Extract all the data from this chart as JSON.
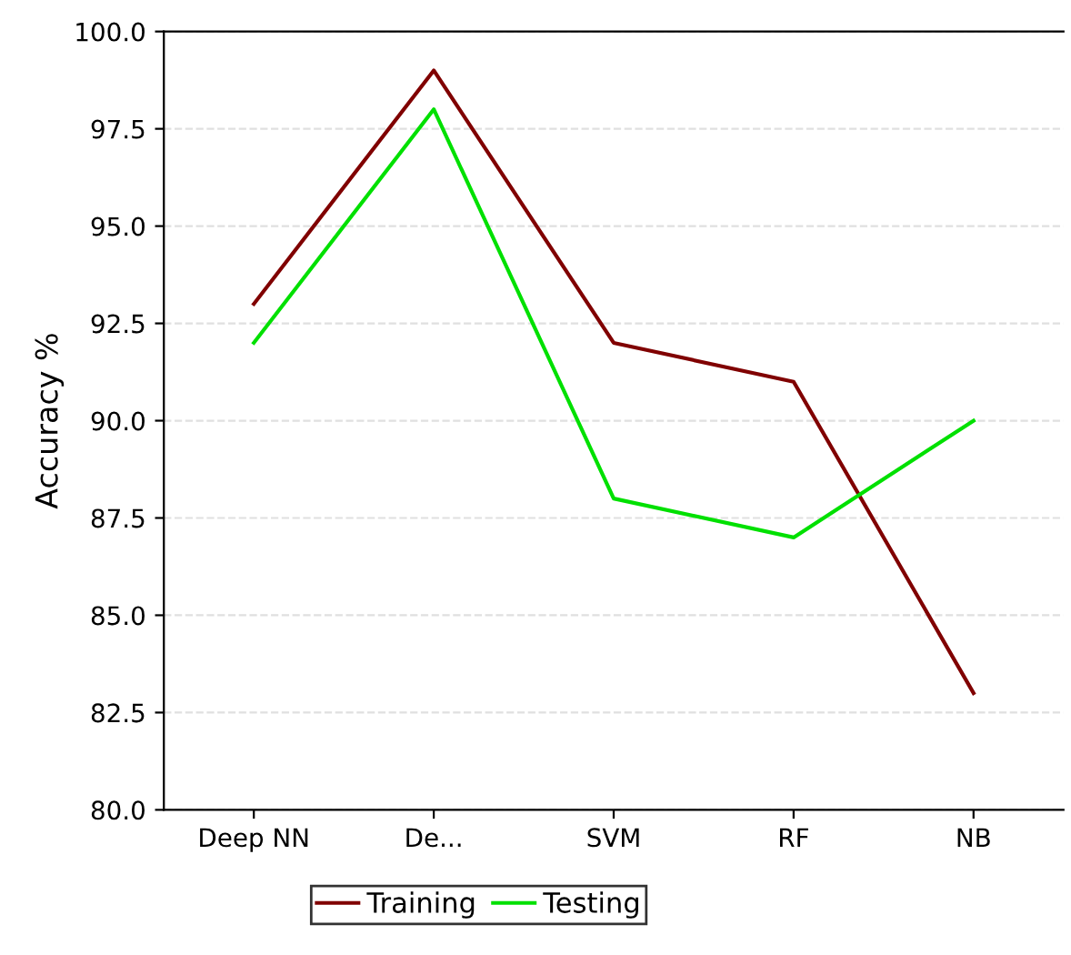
{
  "chart_data": {
    "type": "line",
    "ylabel": "Accuracy %",
    "categories": [
      "Deep NN",
      "De...",
      "SVM",
      "RF",
      "NB"
    ],
    "series": [
      {
        "name": "Training",
        "color": "#800000",
        "values": [
          93,
          99,
          92,
          91,
          83
        ]
      },
      {
        "name": "Testing",
        "color": "#00e000",
        "values": [
          92,
          98,
          88,
          87,
          90
        ]
      }
    ],
    "ylim": [
      80,
      100
    ],
    "yticks": [
      {
        "value": 80,
        "label": "80.0"
      },
      {
        "value": 82.5,
        "label": "82.5"
      },
      {
        "value": 85,
        "label": "85.0"
      },
      {
        "value": 87.5,
        "label": "87.5"
      },
      {
        "value": 90,
        "label": "90.0"
      },
      {
        "value": 92.5,
        "label": "92.5"
      },
      {
        "value": 95,
        "label": "95.0"
      },
      {
        "value": 97.5,
        "label": "97.5"
      },
      {
        "value": 100,
        "label": "100.0"
      }
    ],
    "grid": "y",
    "legend": "bottom",
    "marker": "none",
    "line_style": "solid"
  }
}
